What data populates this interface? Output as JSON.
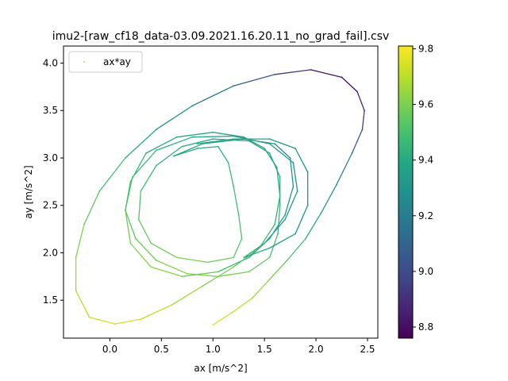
{
  "chart_data": {
    "type": "scatter",
    "title": "imu2-[raw_cf18_data-03.09.2021.16.20.11_no_grad_fail].csv",
    "xlabel": "ax [m/s^2]",
    "ylabel": "ay [m/s^2]",
    "xlim": [
      -0.45,
      2.6
    ],
    "ylim": [
      1.1,
      4.18
    ],
    "xticks": [
      0.0,
      0.5,
      1.0,
      1.5,
      2.0,
      2.5
    ],
    "xtick_labels": [
      "0.0",
      "0.5",
      "1.0",
      "1.5",
      "2.0",
      "2.5"
    ],
    "yticks": [
      1.5,
      2.0,
      2.5,
      3.0,
      3.5,
      4.0
    ],
    "ytick_labels": [
      "1.5",
      "2.0",
      "2.5",
      "3.0",
      "3.5",
      "4.0"
    ],
    "grid": false,
    "legend": {
      "placement": "top-left",
      "entries": [
        "ax*ay"
      ]
    },
    "colorbar": {
      "label": "",
      "colormap": "viridis",
      "range": [
        8.76,
        9.81
      ],
      "ticks": [
        8.8,
        9.0,
        9.2,
        9.4,
        9.6,
        9.8
      ],
      "tick_labels": [
        "8.8",
        "9.0",
        "9.2",
        "9.4",
        "9.6",
        "9.8"
      ]
    },
    "series": [
      {
        "name": "ax*ay",
        "points": [
          [
            1.0,
            1.24,
            9.76
          ],
          [
            1.2,
            1.38,
            9.72
          ],
          [
            1.38,
            1.52,
            9.68
          ],
          [
            1.55,
            1.72,
            9.62
          ],
          [
            1.72,
            1.92,
            9.55
          ],
          [
            1.9,
            2.15,
            9.45
          ],
          [
            2.05,
            2.42,
            9.36
          ],
          [
            2.2,
            2.72,
            9.28
          ],
          [
            2.35,
            3.05,
            9.15
          ],
          [
            2.45,
            3.3,
            9.0
          ],
          [
            2.47,
            3.5,
            8.9
          ],
          [
            2.4,
            3.7,
            8.82
          ],
          [
            2.25,
            3.85,
            8.78
          ],
          [
            1.95,
            3.93,
            8.85
          ],
          [
            1.6,
            3.88,
            9.0
          ],
          [
            1.2,
            3.76,
            9.12
          ],
          [
            0.8,
            3.55,
            9.26
          ],
          [
            0.45,
            3.3,
            9.36
          ],
          [
            0.15,
            3.0,
            9.45
          ],
          [
            -0.1,
            2.65,
            9.52
          ],
          [
            -0.25,
            2.3,
            9.58
          ],
          [
            -0.33,
            1.95,
            9.63
          ],
          [
            -0.33,
            1.6,
            9.68
          ],
          [
            -0.2,
            1.32,
            9.72
          ],
          [
            0.05,
            1.25,
            9.76
          ],
          [
            0.3,
            1.3,
            9.72
          ],
          [
            0.6,
            1.45,
            9.68
          ],
          [
            0.9,
            1.65,
            9.63
          ],
          [
            1.2,
            1.85,
            9.57
          ],
          [
            1.45,
            2.05,
            9.5
          ],
          [
            1.6,
            2.3,
            9.45
          ],
          [
            1.65,
            2.6,
            9.42
          ],
          [
            1.62,
            2.9,
            9.4
          ],
          [
            1.5,
            3.1,
            9.38
          ],
          [
            1.3,
            3.22,
            9.36
          ],
          [
            1.0,
            3.27,
            9.38
          ],
          [
            0.65,
            3.22,
            9.4
          ],
          [
            0.35,
            3.05,
            9.43
          ],
          [
            0.2,
            2.75,
            9.47
          ],
          [
            0.15,
            2.45,
            9.52
          ],
          [
            0.25,
            2.15,
            9.56
          ],
          [
            0.45,
            1.92,
            9.6
          ],
          [
            0.75,
            1.78,
            9.62
          ],
          [
            1.05,
            1.75,
            9.61
          ],
          [
            1.35,
            1.8,
            9.57
          ],
          [
            1.55,
            1.95,
            9.52
          ],
          [
            1.63,
            2.2,
            9.48
          ],
          [
            1.65,
            2.5,
            9.44
          ],
          [
            1.65,
            2.8,
            9.4
          ],
          [
            1.55,
            3.05,
            9.38
          ],
          [
            1.35,
            3.18,
            9.36
          ],
          [
            1.0,
            3.2,
            9.38
          ],
          [
            0.7,
            3.12,
            9.41
          ],
          [
            0.45,
            2.92,
            9.45
          ],
          [
            0.3,
            2.65,
            9.5
          ],
          [
            0.28,
            2.35,
            9.54
          ],
          [
            0.4,
            2.1,
            9.57
          ],
          [
            0.65,
            1.95,
            9.6
          ],
          [
            0.95,
            1.9,
            9.59
          ],
          [
            1.2,
            1.95,
            9.56
          ],
          [
            1.28,
            2.15,
            9.52
          ],
          [
            1.25,
            2.4,
            9.5
          ],
          [
            1.2,
            2.7,
            9.47
          ],
          [
            1.15,
            2.95,
            9.44
          ],
          [
            1.05,
            3.12,
            9.42
          ],
          [
            0.85,
            3.1,
            9.41
          ],
          [
            0.62,
            3.02,
            9.4
          ],
          [
            0.9,
            3.15,
            9.37
          ],
          [
            1.3,
            3.2,
            9.34
          ],
          [
            1.6,
            3.15,
            9.3
          ],
          [
            1.75,
            3.0,
            9.28
          ],
          [
            1.78,
            2.7,
            9.3
          ],
          [
            1.7,
            2.4,
            9.33
          ],
          [
            1.55,
            2.15,
            9.38
          ],
          [
            1.35,
            1.95,
            9.45
          ],
          [
            1.05,
            1.8,
            9.53
          ],
          [
            0.7,
            1.75,
            9.6
          ],
          [
            0.4,
            1.85,
            9.63
          ],
          [
            0.2,
            2.1,
            9.6
          ],
          [
            0.15,
            2.45,
            9.55
          ],
          [
            0.22,
            2.8,
            9.5
          ],
          [
            0.45,
            3.08,
            9.45
          ],
          [
            0.8,
            3.22,
            9.4
          ],
          [
            1.2,
            3.23,
            9.36
          ],
          [
            1.55,
            3.15,
            9.33
          ],
          [
            1.78,
            2.95,
            9.3
          ],
          [
            1.82,
            2.65,
            9.3
          ],
          [
            1.7,
            2.35,
            9.33
          ],
          [
            1.5,
            2.1,
            9.38
          ],
          [
            1.3,
            1.95,
            9.43
          ],
          [
            1.55,
            2.05,
            9.38
          ],
          [
            1.8,
            2.2,
            9.33
          ],
          [
            1.92,
            2.5,
            9.3
          ],
          [
            1.92,
            2.85,
            9.28
          ],
          [
            1.8,
            3.1,
            9.3
          ],
          [
            1.55,
            3.2,
            9.33
          ],
          [
            1.2,
            3.2,
            9.37
          ],
          [
            0.85,
            3.15,
            9.4
          ]
        ]
      }
    ]
  }
}
